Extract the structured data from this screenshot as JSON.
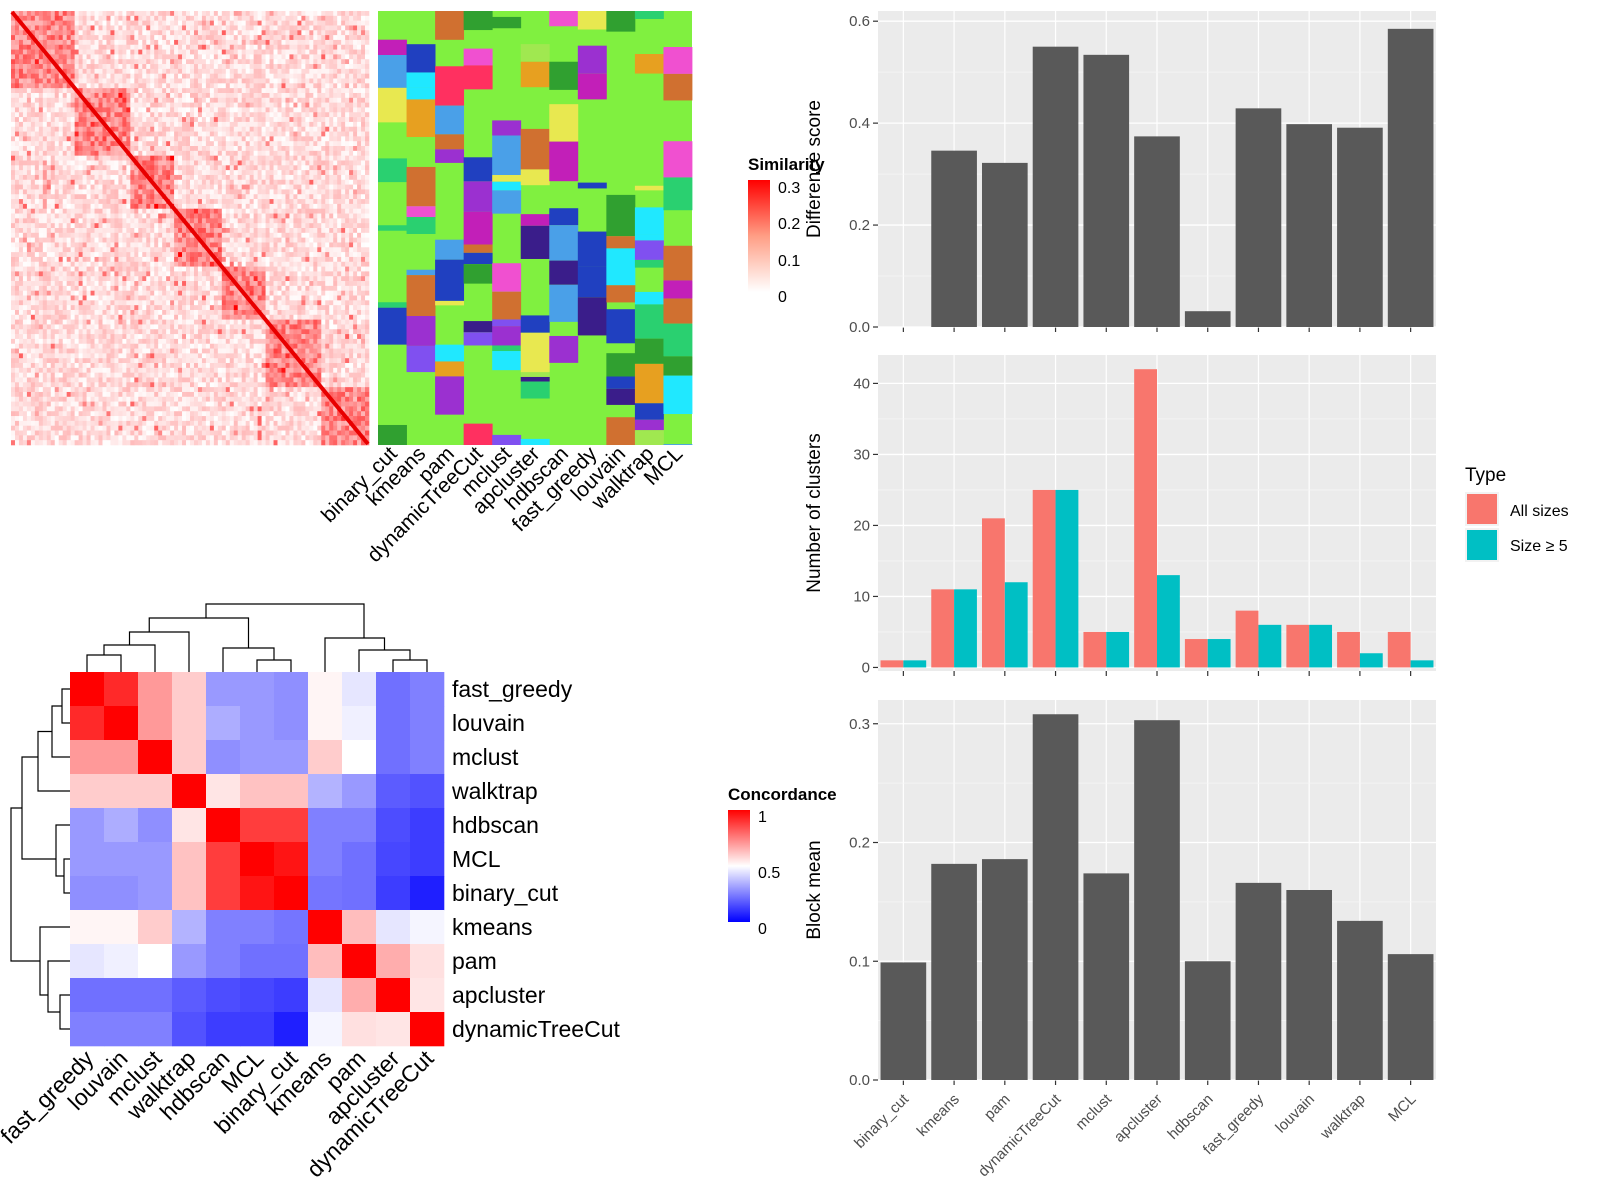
{
  "methods_rows": [
    "binary_cut",
    "kmeans",
    "pam",
    "dynamicTreeCut",
    "mclust",
    "apcluster",
    "hdbscan",
    "fast_greedy",
    "louvain",
    "walktrap",
    "MCL"
  ],
  "similarity_legend": {
    "title": "Similarity",
    "ticks": [
      "0.3",
      "0.2",
      "0.1",
      "0"
    ]
  },
  "concordance_legend": {
    "title": "Concordance",
    "ticks": [
      "1",
      "0.5",
      "0"
    ]
  },
  "concordance_order": [
    "fast_greedy",
    "louvain",
    "mclust",
    "walktrap",
    "hdbscan",
    "MCL",
    "binary_cut",
    "kmeans",
    "pam",
    "apcluster",
    "dynamicTreeCut"
  ],
  "type_legend": {
    "title": "Type",
    "items": [
      {
        "label": "All sizes",
        "color": "#f8766d"
      },
      {
        "label": "Size ≥ 5",
        "color": "#00bfc4"
      }
    ]
  },
  "chart_data": [
    {
      "type": "heatmap",
      "title": "",
      "legend_title": "Similarity",
      "color_range": [
        0,
        0.3
      ],
      "colors": [
        "#ffffff",
        "#ff0000"
      ],
      "note": "term similarity matrix shown as a block-diagonal heatmap"
    },
    {
      "type": "heatmap",
      "title": "",
      "columns": [
        "binary_cut",
        "kmeans",
        "pam",
        "dynamicTreeCut",
        "mclust",
        "apcluster",
        "hdbscan",
        "fast_greedy",
        "louvain",
        "walktrap",
        "MCL"
      ],
      "note": "cluster membership per method, colored by cluster"
    },
    {
      "type": "heatmap",
      "title": "",
      "legend_title": "Concordance",
      "rows": [
        "fast_greedy",
        "louvain",
        "mclust",
        "walktrap",
        "hdbscan",
        "MCL",
        "binary_cut",
        "kmeans",
        "pam",
        "apcluster",
        "dynamicTreeCut"
      ],
      "columns": [
        "fast_greedy",
        "louvain",
        "mclust",
        "walktrap",
        "hdbscan",
        "MCL",
        "binary_cut",
        "kmeans",
        "pam",
        "apcluster",
        "dynamicTreeCut"
      ],
      "color_range": [
        0,
        1
      ],
      "values": [
        [
          1.0,
          0.92,
          0.7,
          0.6,
          0.3,
          0.3,
          0.28,
          0.52,
          0.45,
          0.22,
          0.25
        ],
        [
          0.92,
          1.0,
          0.7,
          0.6,
          0.34,
          0.3,
          0.28,
          0.52,
          0.47,
          0.22,
          0.25
        ],
        [
          0.7,
          0.7,
          1.0,
          0.6,
          0.28,
          0.3,
          0.3,
          0.6,
          0.5,
          0.22,
          0.25
        ],
        [
          0.6,
          0.6,
          0.6,
          1.0,
          0.55,
          0.62,
          0.62,
          0.35,
          0.3,
          0.18,
          0.16
        ],
        [
          0.3,
          0.34,
          0.28,
          0.55,
          1.0,
          0.88,
          0.88,
          0.25,
          0.25,
          0.15,
          0.12
        ],
        [
          0.3,
          0.3,
          0.3,
          0.62,
          0.88,
          1.0,
          0.96,
          0.25,
          0.22,
          0.14,
          0.12
        ],
        [
          0.28,
          0.28,
          0.3,
          0.62,
          0.88,
          0.96,
          1.0,
          0.23,
          0.22,
          0.12,
          0.06
        ],
        [
          0.52,
          0.52,
          0.6,
          0.35,
          0.25,
          0.25,
          0.23,
          1.0,
          0.63,
          0.45,
          0.48
        ],
        [
          0.45,
          0.47,
          0.5,
          0.3,
          0.25,
          0.22,
          0.22,
          0.63,
          1.0,
          0.66,
          0.56
        ],
        [
          0.22,
          0.22,
          0.22,
          0.18,
          0.15,
          0.14,
          0.12,
          0.45,
          0.66,
          1.0,
          0.55
        ],
        [
          0.25,
          0.25,
          0.25,
          0.16,
          0.12,
          0.12,
          0.06,
          0.48,
          0.56,
          0.55,
          1.0
        ]
      ]
    },
    {
      "type": "bar",
      "title": "",
      "xlabel": "",
      "ylabel": "Difference score",
      "categories": [
        "binary_cut",
        "kmeans",
        "pam",
        "dynamicTreeCut",
        "mclust",
        "apcluster",
        "hdbscan",
        "fast_greedy",
        "louvain",
        "walktrap",
        "MCL"
      ],
      "values": [
        0.0,
        0.346,
        0.322,
        0.55,
        0.534,
        0.374,
        0.031,
        0.429,
        0.398,
        0.391,
        0.585
      ],
      "ylim": [
        0,
        0.62
      ],
      "yticks": [
        "0.0",
        "0.2",
        "0.4",
        "0.6"
      ],
      "color": "#595959"
    },
    {
      "type": "bar",
      "title": "",
      "xlabel": "",
      "ylabel": "Number of clusters",
      "categories": [
        "binary_cut",
        "kmeans",
        "pam",
        "dynamicTreeCut",
        "mclust",
        "apcluster",
        "hdbscan",
        "fast_greedy",
        "louvain",
        "walktrap",
        "MCL"
      ],
      "series": [
        {
          "name": "All sizes",
          "values": [
            1,
            11,
            21,
            25,
            5,
            42,
            4,
            8,
            6,
            5,
            5
          ]
        },
        {
          "name": "Size ≥ 5",
          "values": [
            1,
            11,
            12,
            25,
            5,
            13,
            4,
            6,
            6,
            2,
            1
          ]
        }
      ],
      "ylim": [
        -0.5,
        44
      ],
      "yticks": [
        "0",
        "10",
        "20",
        "30",
        "40"
      ],
      "legend_title": "Type"
    },
    {
      "type": "bar",
      "title": "",
      "xlabel": "",
      "ylabel": "Block mean",
      "categories": [
        "binary_cut",
        "kmeans",
        "pam",
        "dynamicTreeCut",
        "mclust",
        "apcluster",
        "hdbscan",
        "fast_greedy",
        "louvain",
        "walktrap",
        "MCL"
      ],
      "values": [
        0.099,
        0.182,
        0.186,
        0.308,
        0.174,
        0.303,
        0.1,
        0.166,
        0.16,
        0.134,
        0.106
      ],
      "ylim": [
        0,
        0.32
      ],
      "yticks": [
        "0.0",
        "0.1",
        "0.2",
        "0.3"
      ],
      "color": "#595959"
    }
  ]
}
